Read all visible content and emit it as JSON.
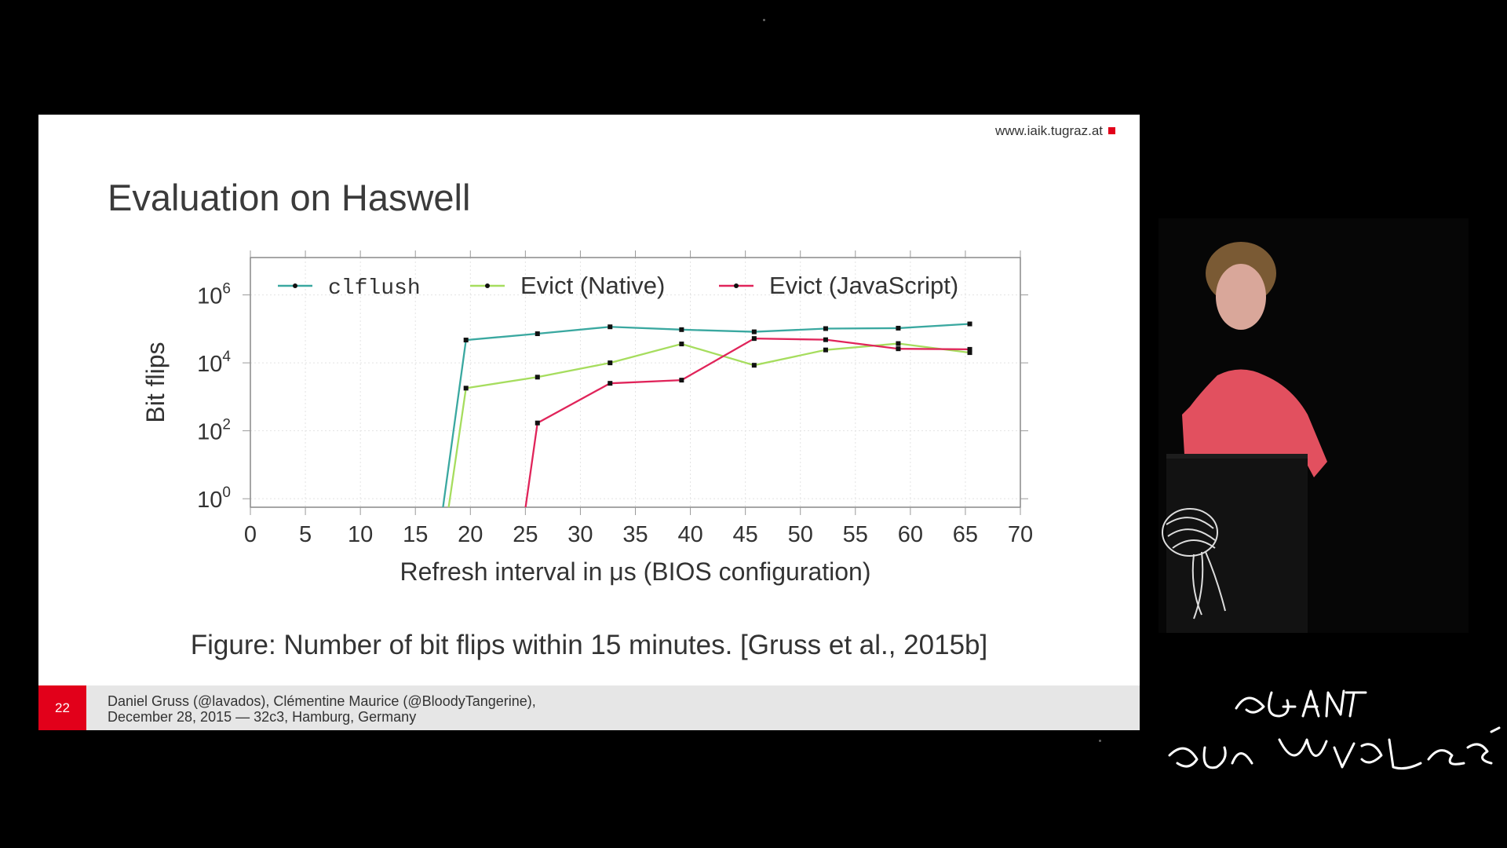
{
  "slide": {
    "website": "www.iaik.tugraz.at",
    "title": "Evaluation on Haswell",
    "caption": "Figure: Number of bit flips within 15 minutes. [Gruss et al., 2015b]",
    "page_number": "22",
    "authors_line1": "Daniel Gruss (@lavados), Clémentine Maurice (@BloodyTangerine),",
    "authors_line2": "December 28, 2015 — 32c3, Hamburg, Germany"
  },
  "colors": {
    "accent": "#e2001a",
    "clflush": "#3aa8a0",
    "evict_native": "#a6dd5e",
    "evict_js": "#e0245a"
  },
  "chart_data": {
    "type": "line",
    "xlabel": "Refresh interval in μs (BIOS configuration)",
    "ylabel": "Bit flips",
    "xlim": [
      0,
      70
    ],
    "ylim_log10": [
      -0.25,
      7.1
    ],
    "y_scale": "log10",
    "x_ticks": [
      0,
      5,
      10,
      15,
      20,
      25,
      30,
      35,
      40,
      45,
      50,
      55,
      60,
      65,
      70
    ],
    "y_ticks": [
      {
        "exp": 0,
        "base": "10",
        "sup": "0"
      },
      {
        "exp": 2,
        "base": "10",
        "sup": "2"
      },
      {
        "exp": 4,
        "base": "10",
        "sup": "4"
      },
      {
        "exp": 6,
        "base": "10",
        "sup": "6"
      }
    ],
    "legend_position": "top",
    "grid": true,
    "series": [
      {
        "name": "clflush",
        "color": "#3aa8a0",
        "monospace": true,
        "points": [
          [
            17.3,
            0
          ],
          [
            19.6,
            47000
          ],
          [
            26.1,
            72000
          ],
          [
            32.7,
            115000
          ],
          [
            39.2,
            95000
          ],
          [
            45.8,
            82000
          ],
          [
            52.3,
            102000
          ],
          [
            58.9,
            105000
          ],
          [
            65.4,
            140000
          ]
        ]
      },
      {
        "name": "Evict (Native)",
        "color": "#a6dd5e",
        "monospace": false,
        "points": [
          [
            17.8,
            0
          ],
          [
            19.6,
            1800
          ],
          [
            26.1,
            3800
          ],
          [
            32.7,
            10000
          ],
          [
            39.2,
            36000
          ],
          [
            45.8,
            8500
          ],
          [
            52.3,
            24000
          ],
          [
            58.9,
            37000
          ],
          [
            65.4,
            20000
          ]
        ]
      },
      {
        "name": "Evict (JavaScript)",
        "color": "#e0245a",
        "monospace": false,
        "points": [
          [
            24.8,
            0
          ],
          [
            26.1,
            170
          ],
          [
            32.7,
            2500
          ],
          [
            39.2,
            3100
          ],
          [
            45.8,
            52000
          ],
          [
            52.3,
            48000
          ],
          [
            58.9,
            26000
          ],
          [
            65.4,
            25000
          ]
        ]
      }
    ]
  }
}
